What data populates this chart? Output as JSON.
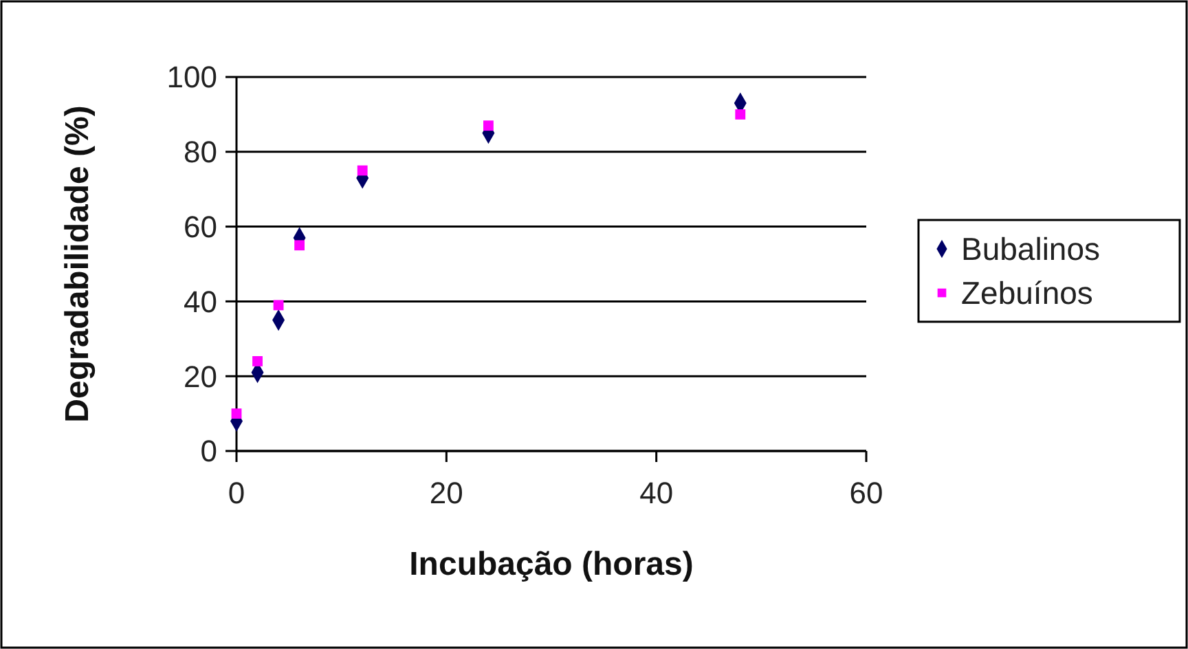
{
  "chart_data": {
    "type": "scatter",
    "xlabel": "Incubação (horas)",
    "ylabel": "Degradabilidade (%)",
    "xlim": [
      0,
      60
    ],
    "xticks": [
      0,
      20,
      40,
      60
    ],
    "ylim": [
      0,
      100
    ],
    "yticks": [
      0,
      20,
      40,
      60,
      80,
      100
    ],
    "grid": "y",
    "legend": "right",
    "series": [
      {
        "name": "Bubalinos",
        "color": "#000066",
        "marker": "diamond",
        "x": [
          0,
          2,
          4,
          6,
          12,
          24,
          48
        ],
        "values": [
          8,
          21,
          35,
          57,
          73,
          85,
          93
        ]
      },
      {
        "name": "Zebuínos",
        "color": "#ff00ff",
        "marker": "square",
        "x": [
          0,
          2,
          4,
          6,
          12,
          24,
          48
        ],
        "values": [
          10,
          24,
          39,
          55,
          75,
          87,
          90
        ]
      }
    ]
  }
}
